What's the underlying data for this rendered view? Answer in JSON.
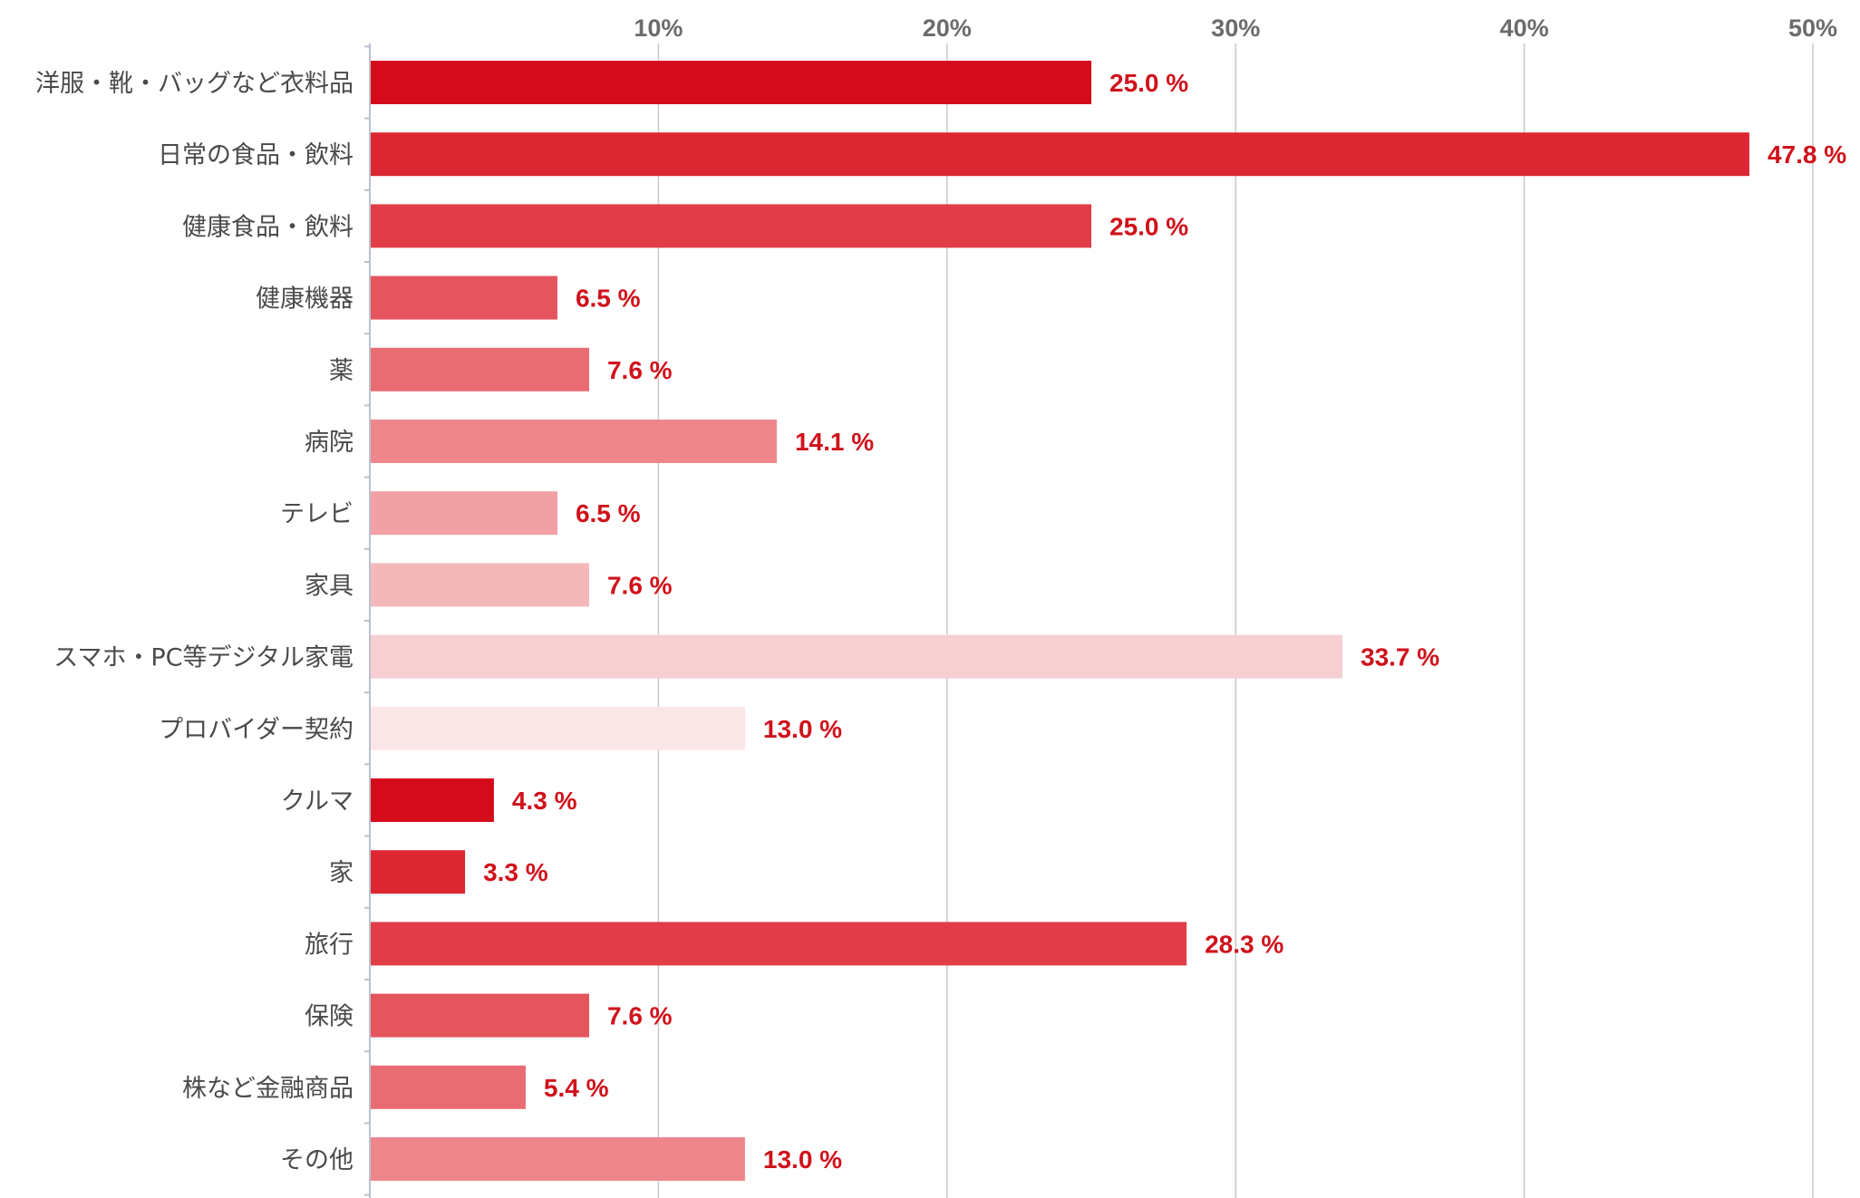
{
  "chart_data": {
    "type": "bar",
    "orientation": "horizontal",
    "title": "",
    "xlabel": "",
    "ylabel": "",
    "xlim": [
      0,
      50
    ],
    "x_ticks": [
      10,
      20,
      30,
      40,
      50
    ],
    "x_tick_labels": [
      "10%",
      "20%",
      "30%",
      "40%",
      "50%"
    ],
    "axis_position": "top",
    "grid": true,
    "legend": "none",
    "value_suffix": " %",
    "value_label_color": "#d0121b",
    "categories": [
      "洋服・靴・バッグなど衣料品",
      "日常の食品・飲料",
      "健康食品・飲料",
      "健康機器",
      "薬",
      "病院",
      "テレビ",
      "家具",
      "スマホ・PC等デジタル家電",
      "プロバイダー契約",
      "クルマ",
      "家",
      "旅行",
      "保険",
      "株など金融商品",
      "その他"
    ],
    "values": [
      25.0,
      47.8,
      25.0,
      6.5,
      7.6,
      14.1,
      6.5,
      7.6,
      33.7,
      13.0,
      4.3,
      3.3,
      28.3,
      7.6,
      5.4,
      13.0
    ],
    "bar_colors": [
      "#d50b1c",
      "#dc2732",
      "#e03d48",
      "#e5555e",
      "#ea6c73",
      "#ee878c",
      "#f1a0a4",
      "#f4b8bb",
      "#f7cfd2",
      "#fbe6e7",
      "#d50b1c",
      "#dc2732",
      "#e03d48",
      "#e5555e",
      "#ea6c73",
      "#ee878c"
    ],
    "colors": {
      "grid": "#c8c8c8",
      "axis": "#b9c2d0",
      "tick_text": "#6b6b6b",
      "category_text": "#4a4a4a"
    }
  }
}
